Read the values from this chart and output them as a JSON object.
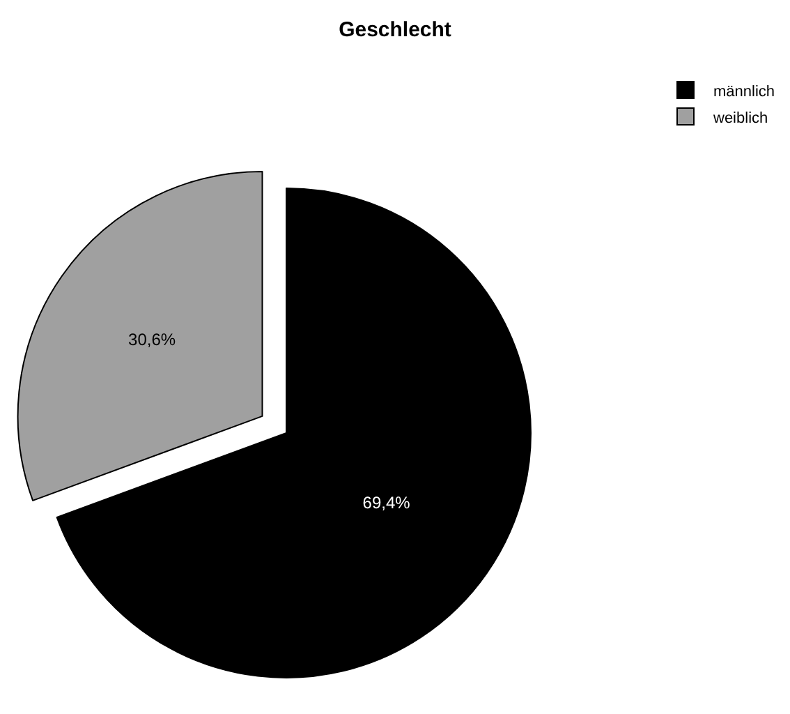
{
  "chart_data": {
    "type": "pie",
    "title": "Geschlecht",
    "categories": [
      "männlich",
      "weiblich"
    ],
    "values": [
      69.4,
      30.6
    ],
    "colors": [
      "#000000",
      "#a0a0a0"
    ],
    "value_labels": [
      "69,4%",
      "30,6%"
    ],
    "legend": "top right"
  }
}
